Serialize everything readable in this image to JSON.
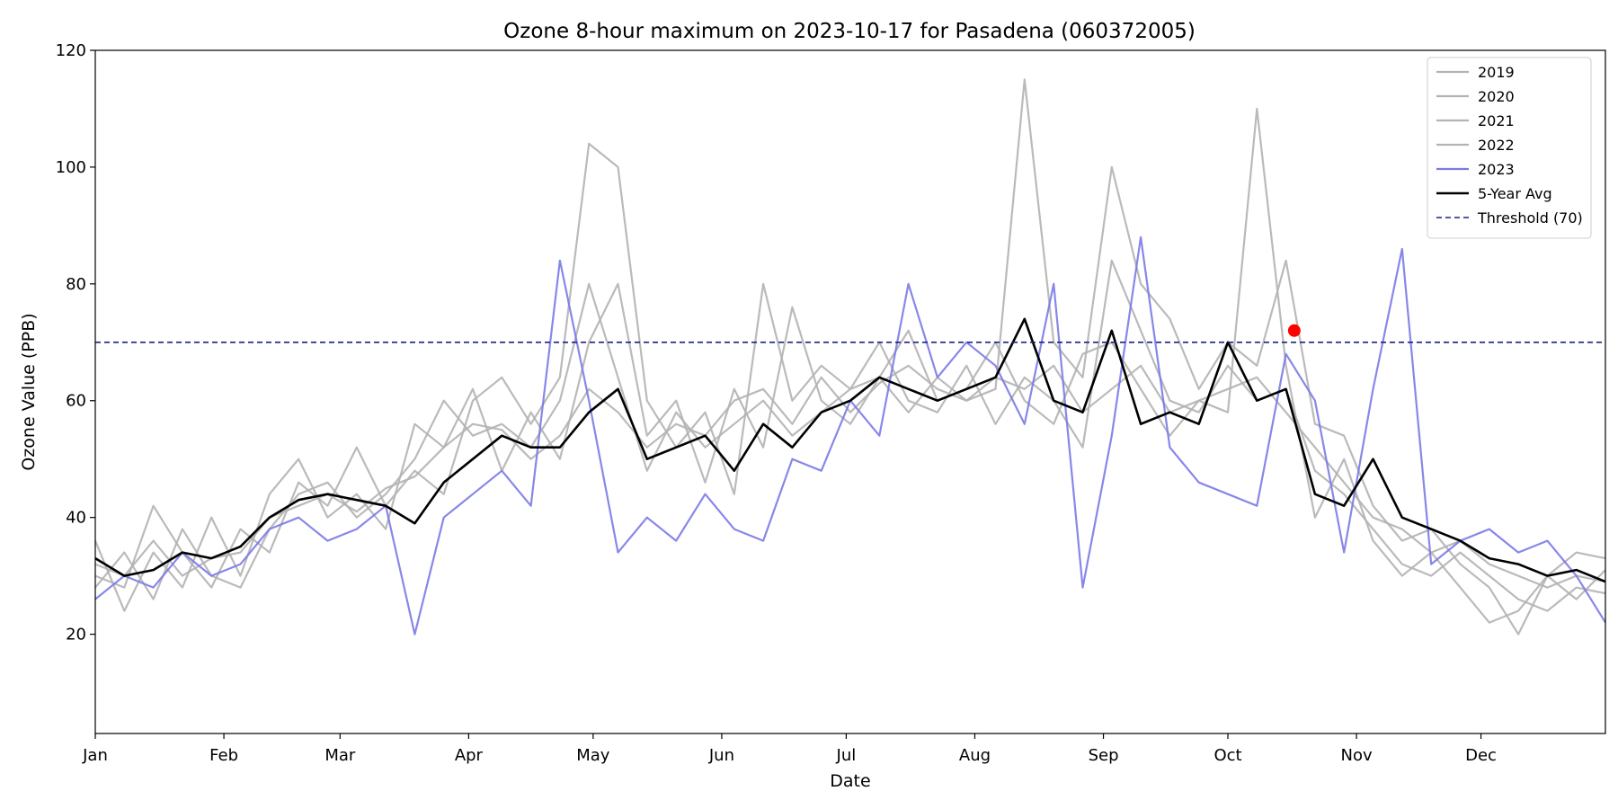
{
  "chart_data": {
    "type": "line",
    "title": "Ozone 8-hour maximum on 2023-10-17 for Pasadena (060372005)",
    "xlabel": "Date",
    "ylabel": "Ozone Value (PPB)",
    "x_ticks": [
      "Jan",
      "Feb",
      "Mar",
      "Apr",
      "May",
      "Jun",
      "Jul",
      "Aug",
      "Sep",
      "Oct",
      "Nov",
      "Dec"
    ],
    "y_ticks": [
      "20",
      "40",
      "60",
      "80",
      "100",
      "120"
    ],
    "ylim": [
      3,
      120
    ],
    "xlim_day_of_year": [
      1,
      365
    ],
    "grid": false,
    "legend_position": "top-right",
    "x_unit_note": "x values are day of year (1 = Jan 1)",
    "series": [
      {
        "name": "2019",
        "color": "#b3b3b3",
        "x": [
          1,
          8,
          15,
          22,
          29,
          36,
          43,
          50,
          57,
          64,
          71,
          78,
          85,
          92,
          99,
          106,
          113,
          120,
          127,
          134,
          141,
          148,
          155,
          162,
          169,
          176,
          183,
          190,
          197,
          204,
          211,
          218,
          225,
          232,
          239,
          246,
          253,
          260,
          267,
          274,
          281,
          288,
          295,
          302,
          309,
          316,
          323,
          330,
          337,
          344,
          351,
          358,
          365
        ],
        "y": [
          32,
          30,
          36,
          30,
          33,
          34,
          40,
          42,
          44,
          41,
          45,
          47,
          52,
          56,
          55,
          50,
          54,
          62,
          58,
          52,
          56,
          54,
          60,
          62,
          56,
          64,
          58,
          63,
          66,
          62,
          60,
          64,
          62,
          66,
          58,
          62,
          66,
          58,
          60,
          62,
          64,
          58,
          52,
          46,
          40,
          38,
          34,
          36,
          32,
          30,
          28,
          30,
          29
        ]
      },
      {
        "name": "2020",
        "color": "#b3b3b3",
        "x": [
          1,
          8,
          15,
          22,
          29,
          36,
          43,
          50,
          57,
          64,
          71,
          78,
          85,
          92,
          99,
          106,
          113,
          120,
          127,
          134,
          141,
          148,
          155,
          162,
          169,
          176,
          183,
          190,
          197,
          204,
          211,
          218,
          225,
          232,
          239,
          246,
          253,
          260,
          267,
          274,
          281,
          288,
          295,
          302,
          309,
          316,
          323,
          330,
          337,
          344,
          351,
          358,
          365
        ],
        "y": [
          28,
          34,
          26,
          38,
          30,
          28,
          38,
          44,
          46,
          40,
          44,
          50,
          60,
          54,
          56,
          52,
          60,
          80,
          64,
          48,
          58,
          52,
          56,
          60,
          54,
          58,
          62,
          70,
          60,
          58,
          66,
          56,
          64,
          60,
          52,
          84,
          72,
          60,
          58,
          66,
          60,
          62,
          48,
          44,
          38,
          32,
          30,
          34,
          30,
          26,
          24,
          28,
          27
        ]
      },
      {
        "name": "2021",
        "color": "#b3b3b3",
        "x": [
          1,
          8,
          15,
          22,
          29,
          36,
          43,
          50,
          57,
          64,
          71,
          78,
          85,
          92,
          99,
          106,
          113,
          120,
          127,
          134,
          141,
          148,
          155,
          162,
          169,
          176,
          183,
          190,
          197,
          204,
          211,
          218,
          225,
          232,
          239,
          246,
          253,
          260,
          267,
          274,
          281,
          288,
          295,
          302,
          309,
          316,
          323,
          330,
          337,
          344,
          351,
          358,
          365
        ],
        "y": [
          36,
          24,
          34,
          28,
          40,
          30,
          44,
          50,
          40,
          44,
          38,
          56,
          52,
          62,
          48,
          58,
          50,
          70,
          80,
          54,
          60,
          46,
          62,
          52,
          76,
          60,
          56,
          64,
          72,
          60,
          62,
          70,
          60,
          56,
          68,
          70,
          62,
          54,
          60,
          58,
          110,
          66,
          40,
          50,
          36,
          30,
          34,
          28,
          22,
          24,
          30,
          26,
          31
        ]
      },
      {
        "name": "2022",
        "color": "#b3b3b3",
        "x": [
          1,
          8,
          15,
          22,
          29,
          36,
          43,
          50,
          57,
          64,
          71,
          78,
          85,
          92,
          99,
          106,
          113,
          120,
          127,
          134,
          141,
          148,
          155,
          162,
          169,
          176,
          183,
          190,
          197,
          204,
          211,
          218,
          225,
          232,
          239,
          246,
          253,
          260,
          267,
          274,
          281,
          288,
          295,
          302,
          309,
          316,
          323,
          330,
          337,
          344,
          351,
          358,
          365
        ],
        "y": [
          30,
          28,
          42,
          34,
          28,
          38,
          34,
          46,
          42,
          52,
          42,
          48,
          44,
          60,
          64,
          56,
          64,
          104,
          100,
          60,
          52,
          58,
          44,
          80,
          60,
          66,
          62,
          64,
          58,
          64,
          60,
          62,
          115,
          70,
          64,
          100,
          80,
          74,
          62,
          70,
          66,
          84,
          56,
          54,
          42,
          36,
          38,
          32,
          28,
          20,
          30,
          34,
          33
        ]
      },
      {
        "name": "2023",
        "color": "#7a7ae8",
        "x": [
          1,
          8,
          15,
          22,
          29,
          36,
          43,
          50,
          57,
          64,
          71,
          78,
          85,
          92,
          99,
          106,
          113,
          120,
          127,
          134,
          141,
          148,
          155,
          162,
          169,
          176,
          183,
          190,
          197,
          204,
          211,
          218,
          225,
          232,
          239,
          246,
          253,
          260,
          267,
          274,
          281,
          288,
          295,
          302,
          309,
          316,
          323,
          330,
          337,
          344,
          351,
          358,
          365
        ],
        "y": [
          26,
          30,
          28,
          34,
          30,
          32,
          38,
          40,
          36,
          38,
          42,
          20,
          40,
          44,
          48,
          42,
          84,
          60,
          34,
          40,
          36,
          44,
          38,
          36,
          50,
          48,
          60,
          54,
          80,
          64,
          70,
          66,
          56,
          80,
          28,
          54,
          88,
          52,
          46,
          44,
          42,
          68,
          60,
          34,
          62,
          86,
          32,
          36,
          38,
          34,
          36,
          30,
          22
        ]
      },
      {
        "name": "5-Year Avg",
        "color": "#000000",
        "x": [
          1,
          8,
          15,
          22,
          29,
          36,
          43,
          50,
          57,
          64,
          71,
          78,
          85,
          92,
          99,
          106,
          113,
          120,
          127,
          134,
          141,
          148,
          155,
          162,
          169,
          176,
          183,
          190,
          197,
          204,
          211,
          218,
          225,
          232,
          239,
          246,
          253,
          260,
          267,
          274,
          281,
          288,
          295,
          302,
          309,
          316,
          323,
          330,
          337,
          344,
          351,
          358,
          365
        ],
        "y": [
          33,
          30,
          31,
          34,
          33,
          35,
          40,
          43,
          44,
          43,
          42,
          39,
          46,
          50,
          54,
          52,
          52,
          58,
          62,
          50,
          52,
          54,
          48,
          56,
          52,
          58,
          60,
          64,
          62,
          60,
          62,
          64,
          74,
          60,
          58,
          72,
          56,
          58,
          56,
          70,
          60,
          62,
          44,
          42,
          50,
          40,
          38,
          36,
          33,
          32,
          30,
          31,
          29
        ]
      },
      {
        "name": "Threshold (70)",
        "color": "#1a237e",
        "style": "dashed",
        "x": [
          1,
          365
        ],
        "y": [
          70,
          70
        ]
      }
    ],
    "highlight_point": {
      "date": "2023-10-17",
      "day_of_year": 290,
      "value": 72,
      "color": "#ff0000"
    }
  }
}
